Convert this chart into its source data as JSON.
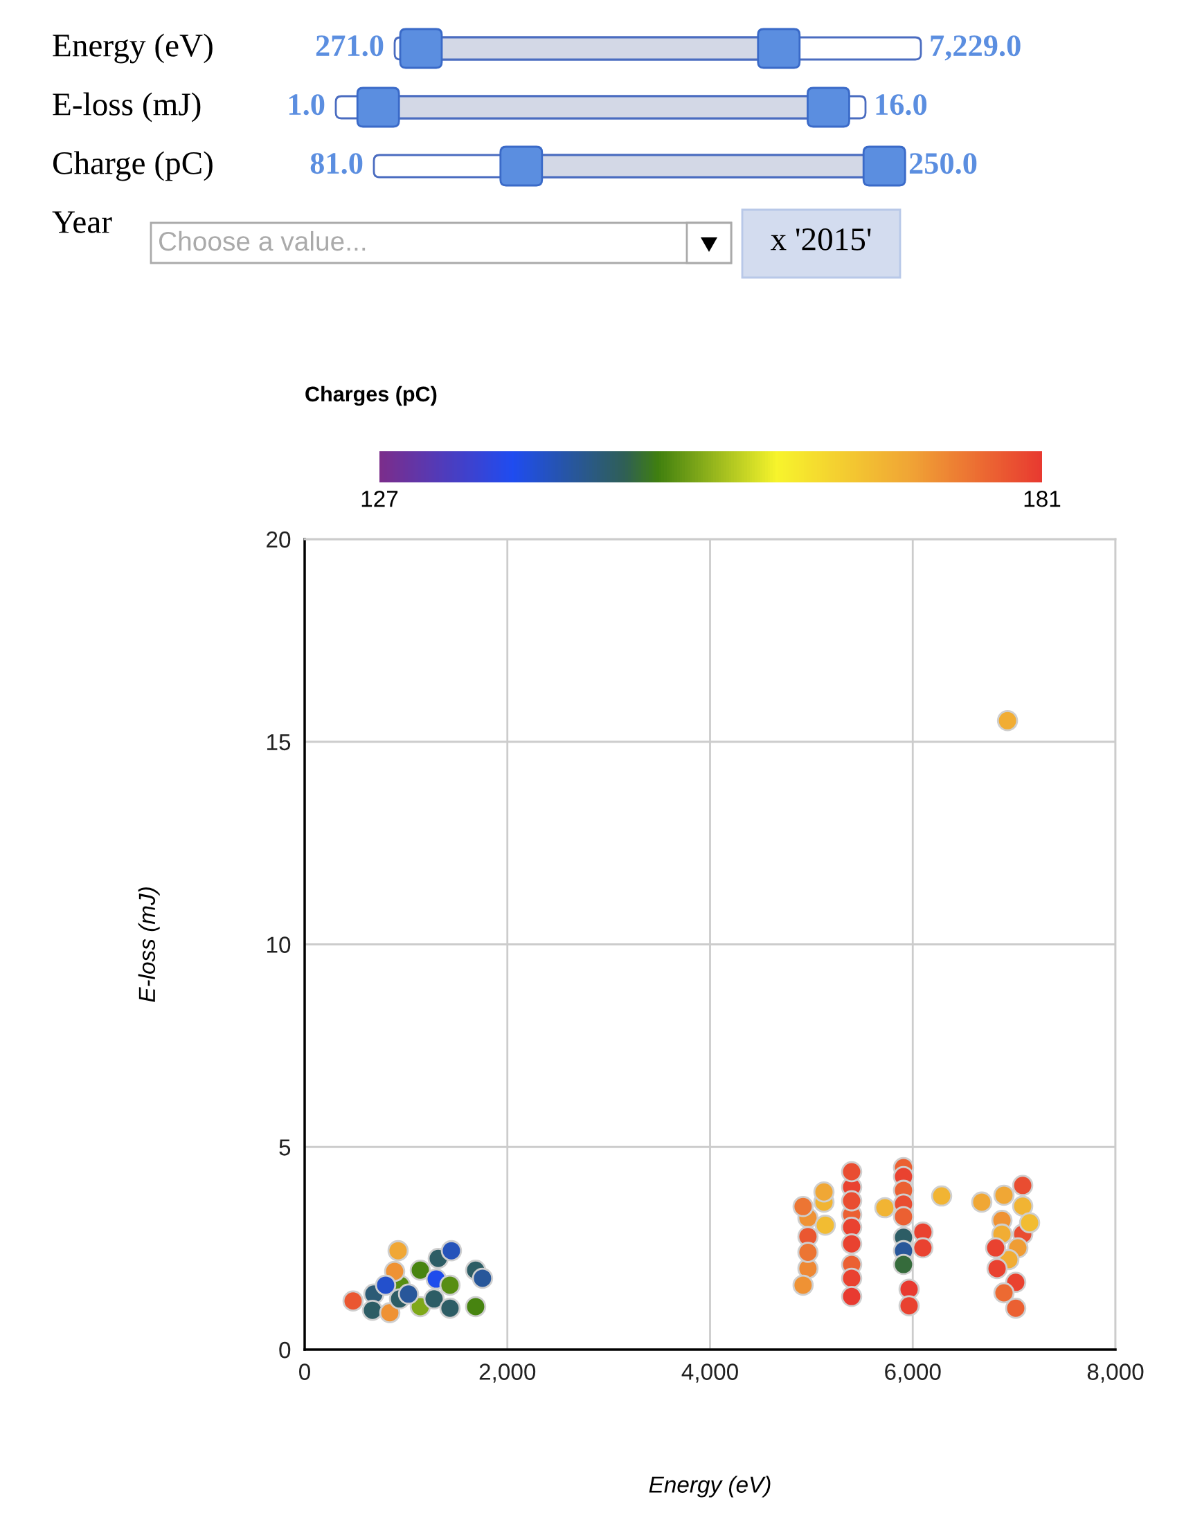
{
  "chart_data": [
    {
      "type": "other",
      "annotations": [
        "Energy (eV)",
        "271.0",
        "7,229.0",
        "E-loss (mJ)",
        "1.0",
        "16.0",
        "Charge (pC)",
        "81.0",
        "250.0",
        "Year",
        "Choose a value...",
        "x '2015'"
      ]
    },
    {
      "type": "scatter",
      "title": "Charges (pC)",
      "xlabel": "Energy (eV)",
      "ylabel": "E-loss (mJ)",
      "clim": [
        127,
        181
      ],
      "cticks": [
        127,
        181
      ],
      "xlim": [
        0,
        8000
      ],
      "ylim": [
        0,
        20
      ],
      "xticks": [
        0,
        {
          "value": 2000,
          "label": "2,000"
        },
        {
          "value": 4000,
          "label": "4,000"
        },
        {
          "value": 6000,
          "label": "6,000"
        },
        {
          "value": 8000,
          "label": "8,000"
        }
      ],
      "yticks": [
        0,
        5,
        10,
        15,
        20
      ],
      "grid": true,
      "marker": "circle",
      "series": [
        {
          "x": [
            478,
            683,
            922,
            943,
            1141,
            1141,
            1318,
            1298,
            1448,
            1277,
            1434,
            1687,
            1687,
            669,
            840,
            888,
            799,
            936,
            1025,
            1434,
            1755,
            4966,
            4966,
            4966,
            4918,
            4918,
            4966,
            5124,
            5137,
            5124,
            5397,
            5397,
            5397,
            5397,
            5397,
            5397,
            5397,
            5397,
            5397,
            5725,
            5909,
            5909,
            5909,
            5909,
            5909,
            5909,
            5909,
            5909,
            5964,
            5964,
            6100,
            6100,
            6285,
            6681,
            6900,
            7085,
            7085,
            6880,
            6880,
            7085,
            7153,
            7037,
            6948,
            6832,
            7016,
            6900,
            7016,
            6818,
            6935
          ],
          "values": [
            1.2,
            1.37,
            2.44,
            1.59,
            1.06,
            1.96,
            2.25,
            1.74,
            2.44,
            1.25,
            1.02,
            1.96,
            1.06,
            0.97,
            0.91,
            1.93,
            1.59,
            1.25,
            1.37,
            1.59,
            1.76,
            3.25,
            2.79,
            2.0,
            1.59,
            3.53,
            2.4,
            3.64,
            3.07,
            3.89,
            4.01,
            4.39,
            3.33,
            3.02,
            2.61,
            2.1,
            1.76,
            1.31,
            3.67,
            3.5,
            4.49,
            4.27,
            3.93,
            3.59,
            3.28,
            2.77,
            2.44,
            2.1,
            1.49,
            1.08,
            2.9,
            2.51,
            3.79,
            3.64,
            3.81,
            4.05,
            3.54,
            3.19,
            2.85,
            2.85,
            3.13,
            2.51,
            2.22,
            2.0,
            1.66,
            1.4,
            1.02,
            2.51,
            15.52
          ],
          "cvalues": [
            178,
            145,
            170,
            151,
            153,
            150,
            146,
            138,
            141,
            146,
            146,
            146,
            150,
            146,
            172,
            172,
            140,
            146,
            143,
            151,
            143,
            172,
            178,
            173,
            172,
            175,
            175,
            168,
            167,
            170,
            180,
            179,
            177,
            180,
            180,
            177,
            180,
            181,
            179,
            168,
            177,
            180,
            177,
            179,
            177,
            146,
            143,
            148,
            181,
            180,
            180,
            180,
            168,
            170,
            170,
            179,
            168,
            172,
            169,
            179,
            167,
            171,
            169,
            180,
            180,
            176,
            177,
            180,
            169
          ]
        }
      ]
    }
  ]
}
